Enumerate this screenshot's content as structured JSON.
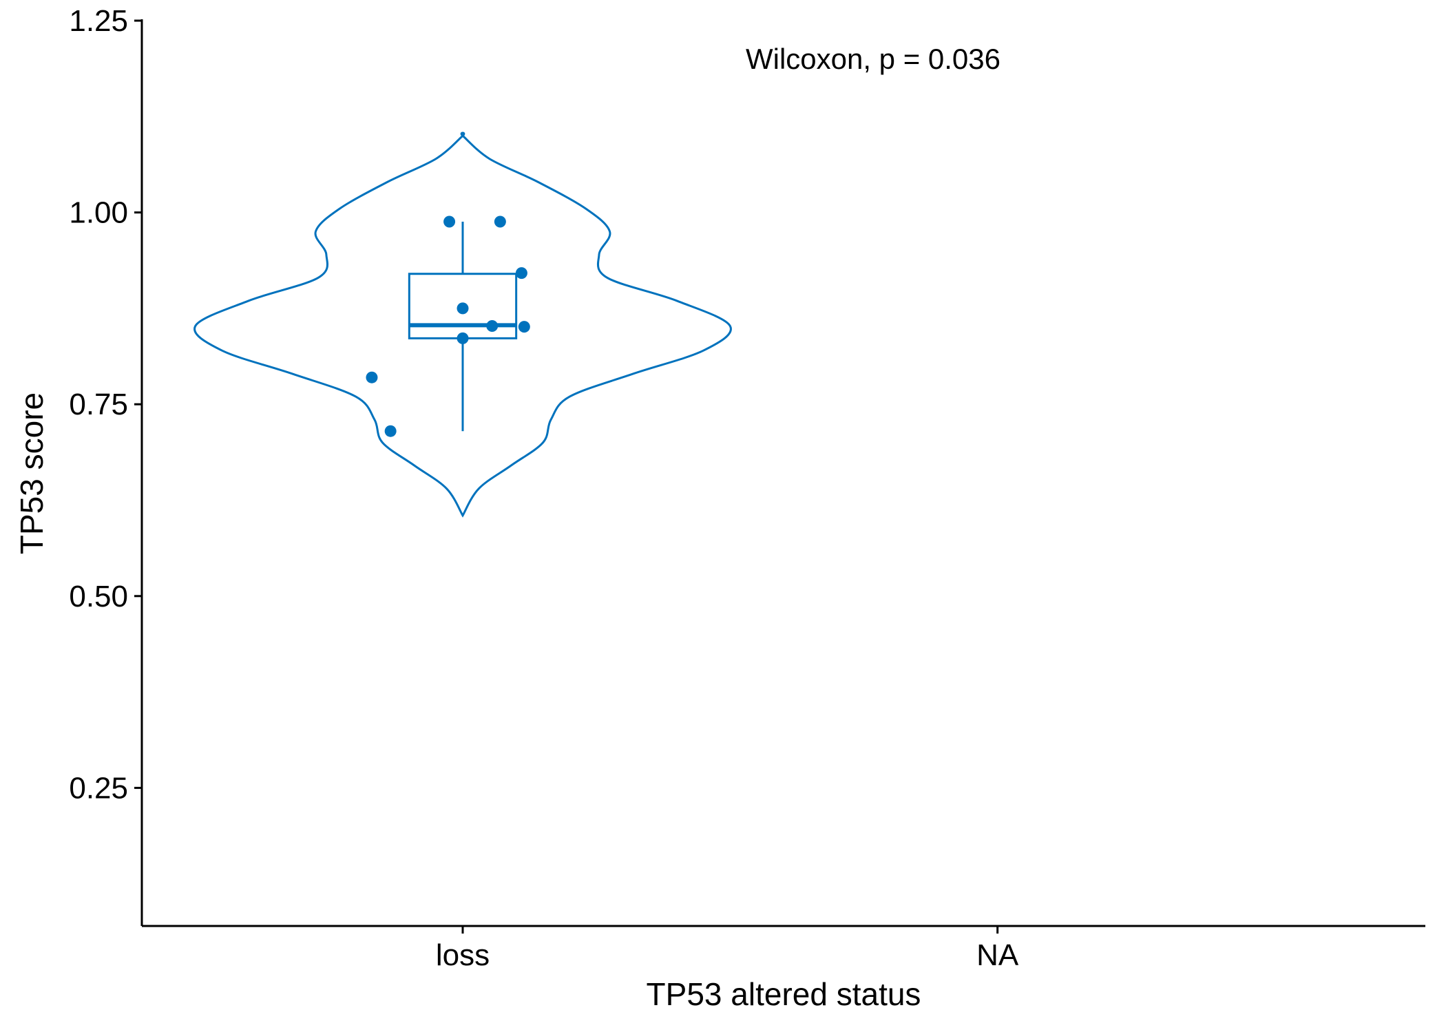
{
  "chart_data": {
    "type": "violin",
    "xlabel": "TP53 altered status",
    "ylabel": "TP53 score",
    "categories": [
      "loss",
      "NA"
    ],
    "ylim": [
      0.07,
      1.25
    ],
    "yticks": [
      0.25,
      0.5,
      0.75,
      1.0,
      1.25
    ],
    "ytick_labels": [
      "0.25",
      "0.50",
      "0.75",
      "1.00",
      "1.25"
    ],
    "annotation": "Wilcoxon, p = 0.036",
    "grid": false,
    "color": "#0072BD",
    "violin": {
      "category": "loss",
      "profile": [
        {
          "y": 0.605,
          "w": 0.0
        },
        {
          "y": 0.64,
          "w": 0.03
        },
        {
          "y": 0.67,
          "w": 0.09
        },
        {
          "y": 0.7,
          "w": 0.15
        },
        {
          "y": 0.73,
          "w": 0.165
        },
        {
          "y": 0.76,
          "w": 0.2
        },
        {
          "y": 0.79,
          "w": 0.32
        },
        {
          "y": 0.82,
          "w": 0.45
        },
        {
          "y": 0.852,
          "w": 0.5
        },
        {
          "y": 0.885,
          "w": 0.4
        },
        {
          "y": 0.915,
          "w": 0.27
        },
        {
          "y": 0.945,
          "w": 0.255
        },
        {
          "y": 0.975,
          "w": 0.275
        },
        {
          "y": 1.005,
          "w": 0.23
        },
        {
          "y": 1.04,
          "w": 0.14
        },
        {
          "y": 1.07,
          "w": 0.05
        },
        {
          "y": 1.1,
          "w": 0.0
        }
      ]
    },
    "boxplot": {
      "category": "loss",
      "min": 0.715,
      "q1": 0.836,
      "median": 0.853,
      "q3": 0.92,
      "max": 0.988
    },
    "points": [
      {
        "x_offset": -0.17,
        "y": 0.785
      },
      {
        "x_offset": -0.135,
        "y": 0.715
      },
      {
        "x_offset": -0.025,
        "y": 0.988
      },
      {
        "x_offset": 0.07,
        "y": 0.988
      },
      {
        "x_offset": 0.11,
        "y": 0.921
      },
      {
        "x_offset": 0.0,
        "y": 0.875
      },
      {
        "x_offset": 0.055,
        "y": 0.852
      },
      {
        "x_offset": 0.115,
        "y": 0.851
      },
      {
        "x_offset": 0.0,
        "y": 0.836
      }
    ]
  }
}
